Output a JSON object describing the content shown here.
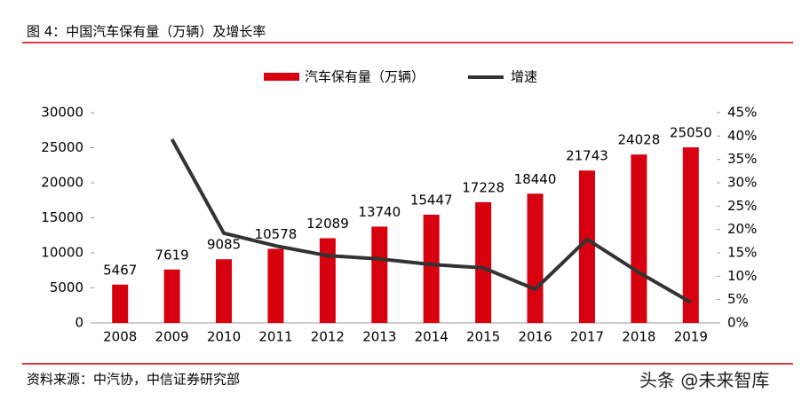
{
  "chart_data": {
    "type": "bar_line",
    "title": "图 4：中国汽车保有量（万辆）及增长率",
    "source": "资料来源：中汽协，中信证券研究部",
    "watermark": "头条 @未来智库",
    "categories": [
      "2008",
      "2009",
      "2010",
      "2011",
      "2012",
      "2013",
      "2014",
      "2015",
      "2016",
      "2017",
      "2018",
      "2019"
    ],
    "series": [
      {
        "name": "汽车保有量（万辆）",
        "color": "#d7000f",
        "values": [
          5467,
          7619,
          9085,
          10578,
          12089,
          13740,
          15447,
          17228,
          18440,
          21743,
          24028,
          25050
        ]
      },
      {
        "name": "增速",
        "color": "#333333",
        "axis": "y2",
        "values": [
          null,
          39.3,
          19.2,
          16.5,
          14.4,
          13.7,
          12.5,
          11.8,
          7.2,
          17.9,
          10.8,
          4.4
        ]
      }
    ],
    "ylim": [
      0,
      30000
    ],
    "yticks": [
      0,
      5000,
      10000,
      15000,
      20000,
      25000,
      30000
    ],
    "y2lim": [
      0,
      45
    ],
    "y2ticks": [
      {
        "value": 0,
        "label": "0%"
      },
      {
        "value": 5,
        "label": "5%"
      },
      {
        "value": 10,
        "label": "10%"
      },
      {
        "value": 15,
        "label": "15%"
      },
      {
        "value": 20,
        "label": "20%"
      },
      {
        "value": 25,
        "label": "25%"
      },
      {
        "value": 30,
        "label": "30%"
      },
      {
        "value": 35,
        "label": "35%"
      },
      {
        "value": 40,
        "label": "40%"
      },
      {
        "value": 45,
        "label": "45%"
      }
    ]
  }
}
